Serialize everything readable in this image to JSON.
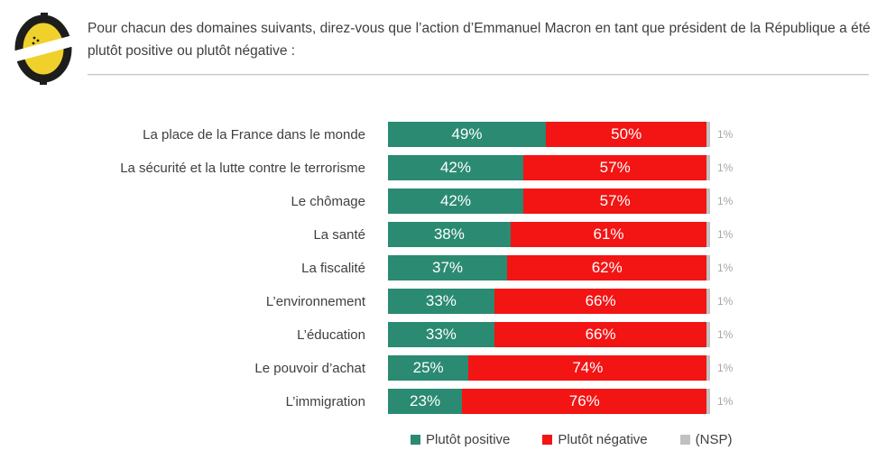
{
  "header": {
    "title": "Pour chacun des domaines suivants, direz-vous que l’action d’Emmanuel Macron en tant que président de la République a été plutôt positive ou plutôt négative :"
  },
  "logo": {
    "description": "yellow-oval-slash-logo",
    "colors": {
      "black": "#1d1d1b",
      "yellow": "#f0d12b",
      "slash": "#ffffff"
    }
  },
  "chart_data": {
    "type": "bar",
    "orientation": "horizontal",
    "stacked": true,
    "value_suffix": "%",
    "xlim": [
      0,
      100
    ],
    "grid": false,
    "legend_position": "bottom",
    "categories": [
      "La place de la France dans le monde",
      "La sécurité et la lutte contre le terrorisme",
      "Le chômage",
      "La santé",
      "La fiscalité",
      "L’environnement",
      "L’éducation",
      "Le pouvoir d’achat",
      "L’immigration"
    ],
    "series": [
      {
        "name": "Plutôt positive",
        "color": "#2a8a72",
        "labels_inside": true,
        "values": [
          49,
          42,
          42,
          38,
          37,
          33,
          33,
          25,
          23
        ]
      },
      {
        "name": "Plutôt négative",
        "color": "#f31414",
        "labels_inside": true,
        "values": [
          50,
          57,
          57,
          61,
          62,
          66,
          66,
          74,
          76
        ]
      },
      {
        "name": "(NSP)",
        "color": "#c1c1c1",
        "labels_inside": false,
        "values": [
          1,
          1,
          1,
          1,
          1,
          1,
          1,
          1,
          1
        ]
      }
    ]
  }
}
